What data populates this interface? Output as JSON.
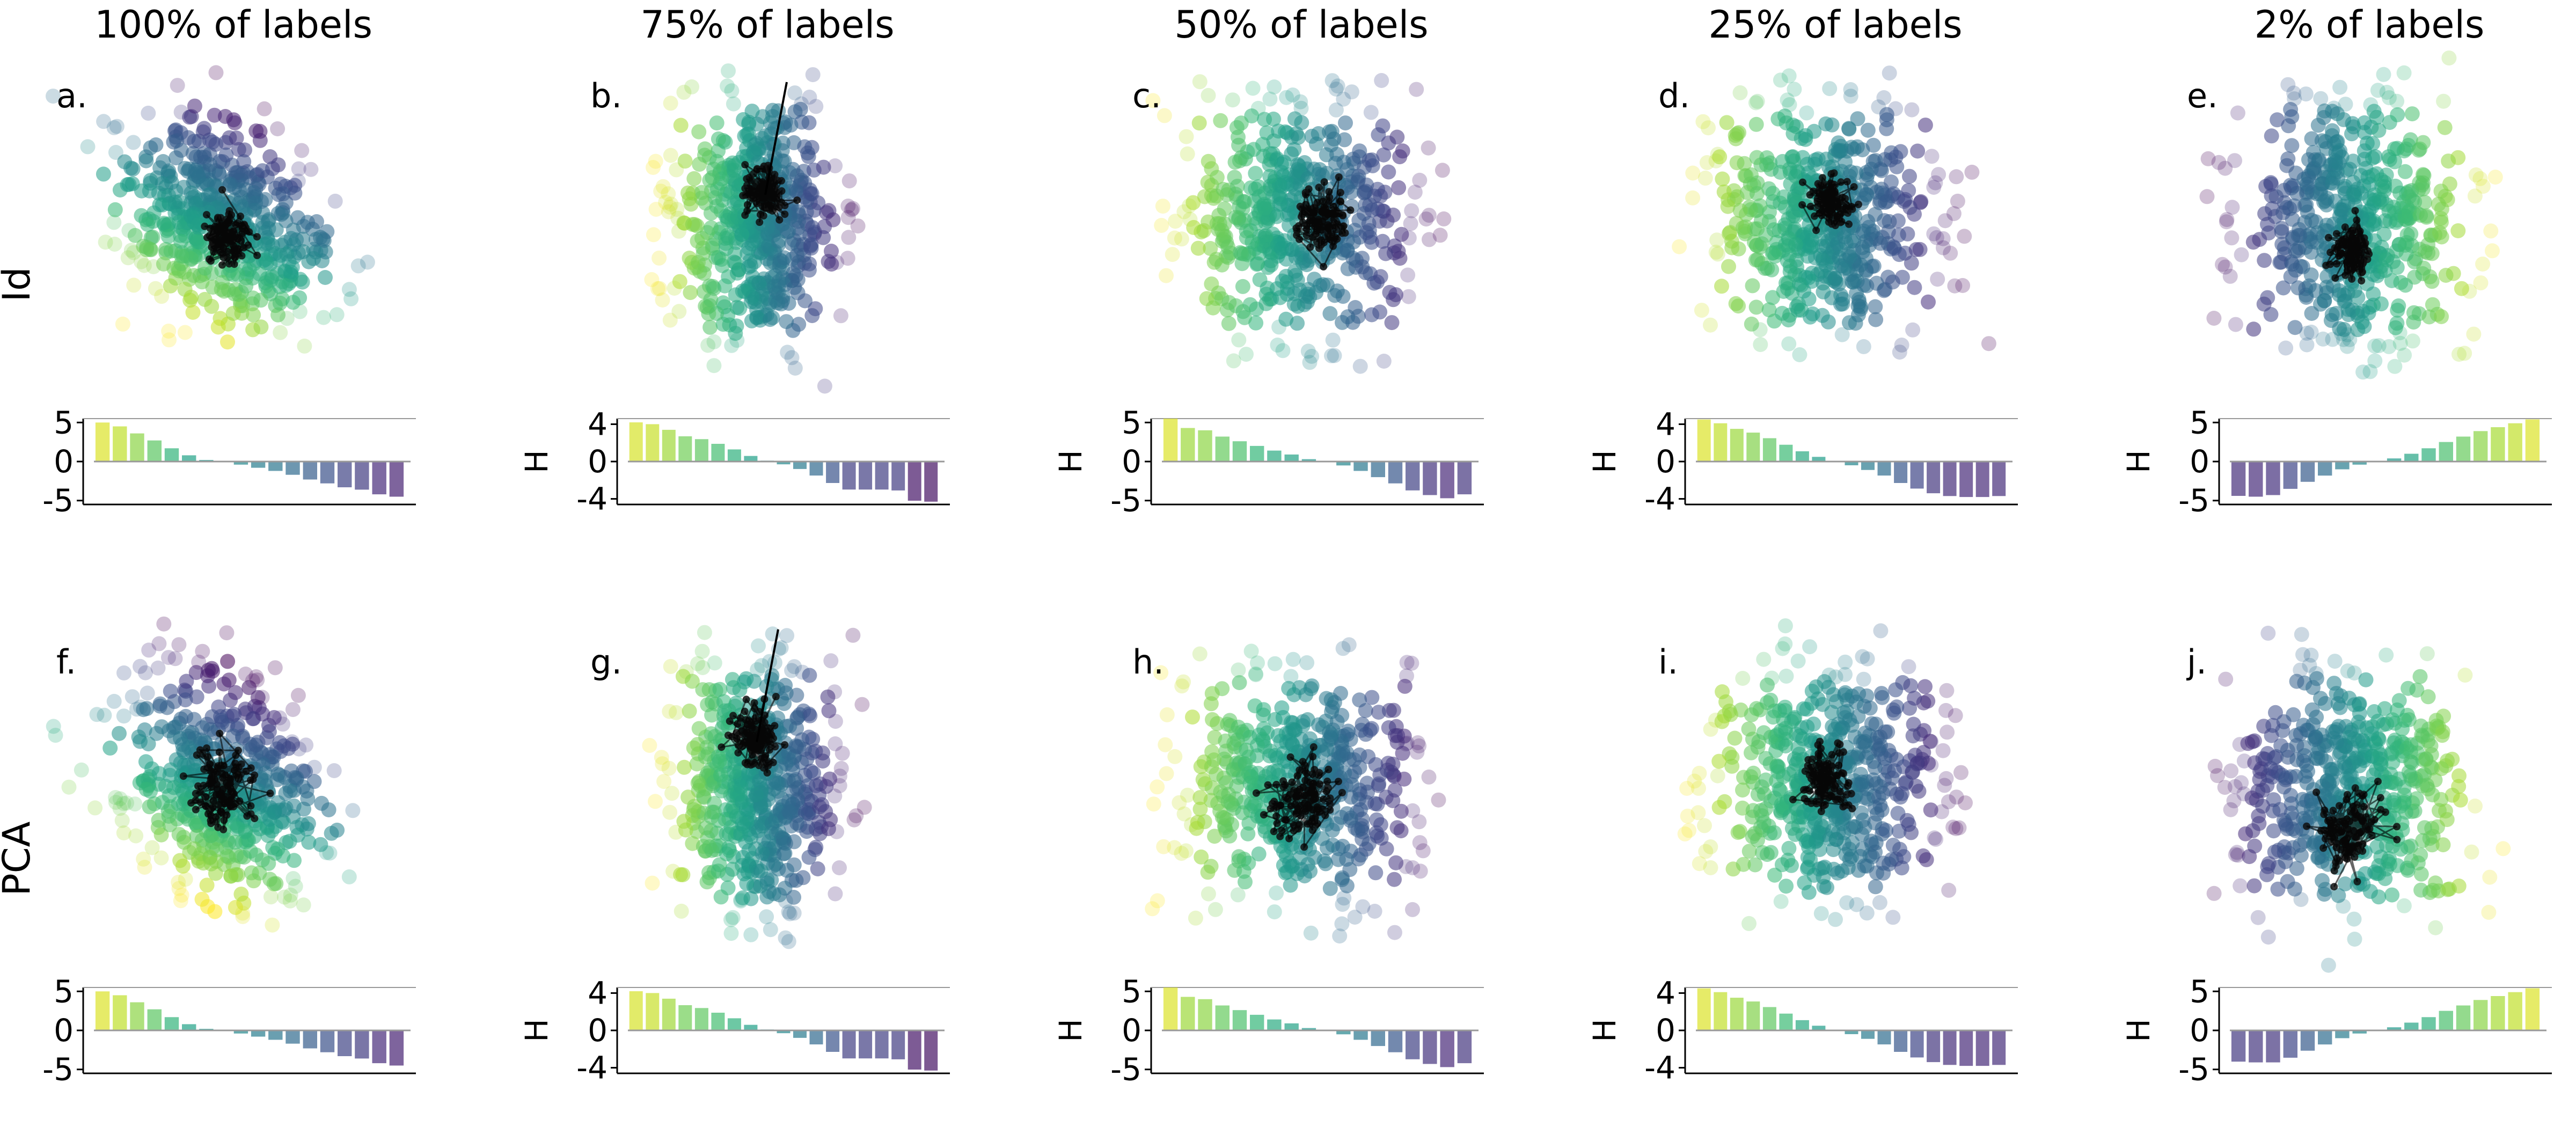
{
  "figure": {
    "column_titles": [
      "100% of labels",
      "75% of labels",
      "50% of labels",
      "25% of labels",
      "2% of labels"
    ],
    "row_labels": [
      "Id",
      "PCA"
    ],
    "bar_axis_label": "H"
  },
  "chart_data": [
    {
      "panel": "a.",
      "row": "Id",
      "column": "100% of labels",
      "type": "scatter+bar",
      "scatter": {
        "shape": "diagonal",
        "cluster_offset": [
          0.05,
          0.15
        ],
        "cluster_spread": 0.14,
        "trajectory": false
      },
      "bar": {
        "type": "bar",
        "yticks": [
          5,
          0,
          -5
        ],
        "ylim": [
          -5.5,
          5.5
        ],
        "values": [
          5.0,
          4.5,
          3.6,
          2.7,
          1.7,
          0.8,
          0.2,
          0,
          -0.4,
          -0.8,
          -1.2,
          -1.7,
          -2.3,
          -2.8,
          -3.3,
          -3.6,
          -4.2,
          -4.5
        ]
      }
    },
    {
      "panel": "b.",
      "row": "Id",
      "column": "75% of labels",
      "type": "scatter+bar",
      "scatter": {
        "shape": "tall",
        "cluster_offset": [
          0.1,
          -0.2
        ],
        "cluster_spread": 0.14,
        "trajectory": true
      },
      "bar": {
        "type": "bar",
        "yticks": [
          4,
          0,
          -4
        ],
        "ylim": [
          -4.6,
          4.6
        ],
        "ylabel": "H",
        "values": [
          4.2,
          4.0,
          3.4,
          2.7,
          2.4,
          1.9,
          1.3,
          0.6,
          0.1,
          -0.3,
          -0.8,
          -1.5,
          -2.3,
          -3.0,
          -3.0,
          -3.0,
          -3.1,
          -4.2,
          -4.3
        ]
      }
    },
    {
      "panel": "c.",
      "row": "Id",
      "column": "50% of labels",
      "type": "scatter+bar",
      "scatter": {
        "shape": "blob",
        "cluster_offset": [
          0.2,
          0.0
        ],
        "cluster_spread": 0.18,
        "trajectory": false
      },
      "bar": {
        "type": "bar",
        "yticks": [
          5,
          0,
          -5
        ],
        "ylim": [
          -5.5,
          5.5
        ],
        "ylabel": "H",
        "values": [
          5.5,
          4.3,
          4.0,
          3.2,
          2.6,
          2.0,
          1.4,
          0.9,
          0.3,
          0,
          -0.5,
          -1.2,
          -2.0,
          -2.8,
          -3.7,
          -4.3,
          -4.7,
          -4.2
        ]
      }
    },
    {
      "panel": "d.",
      "row": "Id",
      "column": "25% of labels",
      "type": "scatter+bar",
      "scatter": {
        "shape": "blob",
        "cluster_offset": [
          0.05,
          -0.15
        ],
        "cluster_spread": 0.13,
        "trajectory": false
      },
      "bar": {
        "type": "bar",
        "yticks": [
          4,
          0,
          -4
        ],
        "ylim": [
          -4.6,
          4.6
        ],
        "ylabel": "H",
        "values": [
          4.5,
          4.1,
          3.5,
          3.1,
          2.5,
          1.8,
          1.1,
          0.5,
          0,
          -0.4,
          -0.9,
          -1.5,
          -2.3,
          -2.9,
          -3.4,
          -3.7,
          -3.8,
          -3.8,
          -3.7
        ]
      }
    },
    {
      "panel": "e.",
      "row": "Id",
      "column": "2% of labels",
      "type": "scatter+bar",
      "scatter": {
        "shape": "round",
        "cluster_offset": [
          0.0,
          0.25
        ],
        "cluster_spread": 0.13,
        "trajectory": false
      },
      "bar": {
        "type": "bar",
        "yticks": [
          5,
          0,
          -5
        ],
        "ylim": [
          -5.5,
          5.5
        ],
        "ylabel": "H",
        "values": [
          -4.4,
          -4.5,
          -4.3,
          -3.5,
          -2.6,
          -1.8,
          -1.0,
          -0.4,
          0,
          0.4,
          1.0,
          1.7,
          2.5,
          3.2,
          3.9,
          4.4,
          4.9,
          5.4
        ]
      }
    },
    {
      "panel": "f.",
      "row": "PCA",
      "column": "100% of labels",
      "type": "scatter+bar",
      "scatter": {
        "shape": "diagonal",
        "cluster_offset": [
          0.0,
          0.0
        ],
        "cluster_spread": 0.22,
        "trajectory": false
      },
      "bar": {
        "type": "bar",
        "yticks": [
          5,
          0,
          -5
        ],
        "ylim": [
          -5.5,
          5.5
        ],
        "values": [
          5.0,
          4.5,
          3.6,
          2.7,
          1.7,
          0.8,
          0.2,
          0,
          -0.4,
          -0.8,
          -1.2,
          -1.7,
          -2.3,
          -2.8,
          -3.3,
          -3.6,
          -4.2,
          -4.5
        ]
      }
    },
    {
      "panel": "g.",
      "row": "PCA",
      "column": "75% of labels",
      "type": "scatter+bar",
      "scatter": {
        "shape": "tall",
        "cluster_offset": [
          0.0,
          -0.35
        ],
        "cluster_spread": 0.17,
        "trajectory": true
      },
      "bar": {
        "type": "bar",
        "yticks": [
          4,
          0,
          -4
        ],
        "ylim": [
          -4.6,
          4.6
        ],
        "ylabel": "H",
        "values": [
          4.2,
          4.0,
          3.4,
          2.7,
          2.4,
          1.9,
          1.3,
          0.6,
          0.1,
          -0.3,
          -0.8,
          -1.5,
          -2.3,
          -3.0,
          -3.0,
          -3.0,
          -3.1,
          -4.2,
          -4.3
        ]
      }
    },
    {
      "panel": "h.",
      "row": "PCA",
      "column": "50% of labels",
      "type": "scatter+bar",
      "scatter": {
        "shape": "blob",
        "cluster_offset": [
          0.05,
          0.1
        ],
        "cluster_spread": 0.24,
        "trajectory": false
      },
      "bar": {
        "type": "bar",
        "yticks": [
          5,
          0,
          -5
        ],
        "ylim": [
          -5.5,
          5.5
        ],
        "ylabel": "H",
        "values": [
          5.5,
          4.3,
          4.0,
          3.2,
          2.6,
          2.0,
          1.4,
          0.9,
          0.3,
          0,
          -0.5,
          -1.2,
          -2.0,
          -2.8,
          -3.7,
          -4.3,
          -4.7,
          -4.2
        ]
      }
    },
    {
      "panel": "i.",
      "row": "PCA",
      "column": "25% of labels",
      "type": "scatter+bar",
      "scatter": {
        "shape": "blob",
        "cluster_offset": [
          0.0,
          -0.05
        ],
        "cluster_spread": 0.18,
        "trajectory": false
      },
      "bar": {
        "type": "bar",
        "yticks": [
          4,
          0,
          -4
        ],
        "ylim": [
          -4.6,
          4.6
        ],
        "ylabel": "H",
        "values": [
          4.5,
          4.1,
          3.5,
          3.1,
          2.5,
          1.8,
          1.1,
          0.5,
          0,
          -0.4,
          -0.9,
          -1.5,
          -2.3,
          -2.9,
          -3.4,
          -3.7,
          -3.8,
          -3.8,
          -3.7
        ]
      }
    },
    {
      "panel": "j.",
      "row": "PCA",
      "column": "2% of labels",
      "type": "scatter+bar",
      "scatter": {
        "shape": "round",
        "cluster_offset": [
          -0.05,
          0.35
        ],
        "cluster_spread": 0.22,
        "trajectory": false
      },
      "bar": {
        "type": "bar",
        "yticks": [
          5,
          0,
          -5
        ],
        "ylim": [
          -5.5,
          5.5
        ],
        "ylabel": "H",
        "values": [
          -4.0,
          -4.1,
          -4.1,
          -3.5,
          -2.6,
          -1.8,
          -1.0,
          -0.4,
          0,
          0.4,
          1.0,
          1.7,
          2.5,
          3.2,
          3.9,
          4.4,
          4.9,
          5.4
        ]
      }
    }
  ]
}
